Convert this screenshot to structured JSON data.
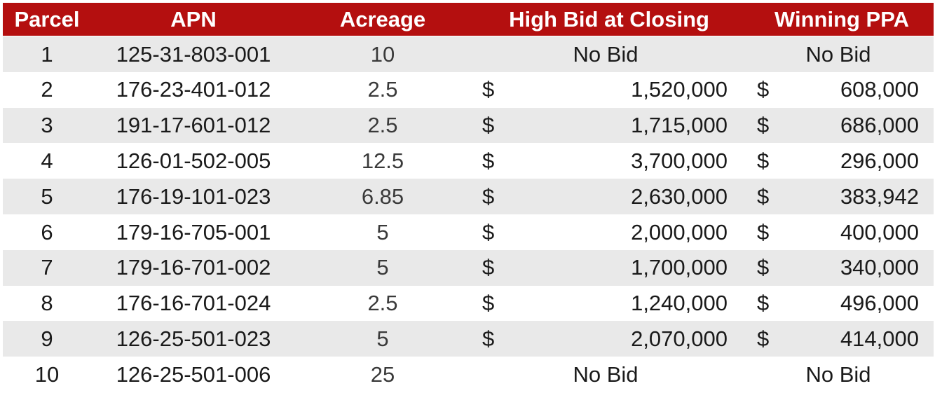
{
  "columns": [
    "Parcel",
    "APN",
    "Acreage",
    "High Bid at Closing",
    "Winning PPA"
  ],
  "currency_symbol": "$",
  "rows": [
    {
      "parcel": "1",
      "apn": "125-31-803-001",
      "acreage": "10",
      "high_bid": "No Bid",
      "ppa": "No Bid"
    },
    {
      "parcel": "2",
      "apn": "176-23-401-012",
      "acreage": "2.5",
      "high_bid": "1,520,000",
      "ppa": "608,000"
    },
    {
      "parcel": "3",
      "apn": "191-17-601-012",
      "acreage": "2.5",
      "high_bid": "1,715,000",
      "ppa": "686,000"
    },
    {
      "parcel": "4",
      "apn": "126-01-502-005",
      "acreage": "12.5",
      "high_bid": "3,700,000",
      "ppa": "296,000"
    },
    {
      "parcel": "5",
      "apn": "176-19-101-023",
      "acreage": "6.85",
      "high_bid": "2,630,000",
      "ppa": "383,942"
    },
    {
      "parcel": "6",
      "apn": "179-16-705-001",
      "acreage": "5",
      "high_bid": "2,000,000",
      "ppa": "400,000"
    },
    {
      "parcel": "7",
      "apn": "179-16-701-002",
      "acreage": "5",
      "high_bid": "1,700,000",
      "ppa": "340,000"
    },
    {
      "parcel": "8",
      "apn": "176-16-701-024",
      "acreage": "2.5",
      "high_bid": "1,240,000",
      "ppa": "496,000"
    },
    {
      "parcel": "9",
      "apn": "126-25-501-023",
      "acreage": "5",
      "high_bid": "2,070,000",
      "ppa": "414,000"
    },
    {
      "parcel": "10",
      "apn": "126-25-501-006",
      "acreage": "25",
      "high_bid": "No Bid",
      "ppa": "No Bid"
    }
  ],
  "colors": {
    "header_bg": "#b40f0f",
    "header_text": "#ffffff",
    "row_alt": "#e9e9e9",
    "row_base": "#ffffff"
  }
}
